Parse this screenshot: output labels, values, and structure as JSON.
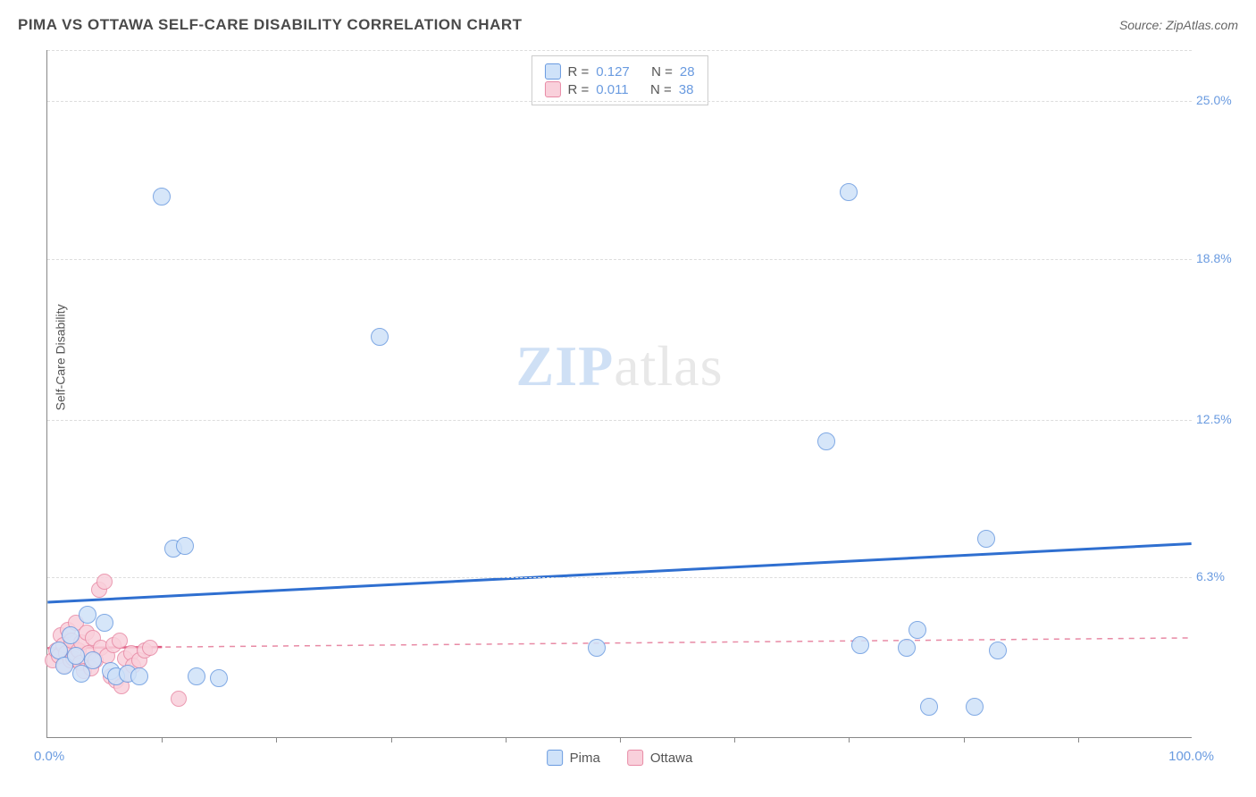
{
  "title": "PIMA VS OTTAWA SELF-CARE DISABILITY CORRELATION CHART",
  "source": "Source: ZipAtlas.com",
  "ylabel": "Self-Care Disability",
  "type": "scatter",
  "xlim": [
    0,
    100
  ],
  "ylim": [
    0,
    27
  ],
  "x_tick_positions": [
    10,
    20,
    30,
    40,
    50,
    60,
    70,
    80,
    90
  ],
  "y_gridlines": [
    6.3,
    12.5,
    18.8,
    25.0
  ],
  "y_tick_labels": [
    "6.3%",
    "12.5%",
    "18.8%",
    "25.0%"
  ],
  "x_min_label": "0.0%",
  "x_max_label": "100.0%",
  "background_color": "#ffffff",
  "grid_color": "#dddddd",
  "axis_color": "#888888",
  "tick_label_color": "#6a9be0",
  "label_fontsize": 14,
  "title_fontsize": 17,
  "series": {
    "pima": {
      "label": "Pima",
      "fill": "#cfe2f9",
      "stroke": "#6a9be0",
      "marker_radius": 10,
      "r_value": "0.127",
      "n_value": "28",
      "trend": {
        "y_at_x0": 5.3,
        "y_at_x100": 7.6,
        "stroke": "#2f6fd0",
        "width": 3,
        "dash": "none"
      },
      "points": [
        {
          "x": 1,
          "y": 3.4
        },
        {
          "x": 1.5,
          "y": 2.8
        },
        {
          "x": 2,
          "y": 4.0
        },
        {
          "x": 2.5,
          "y": 3.2
        },
        {
          "x": 3,
          "y": 2.5
        },
        {
          "x": 3.5,
          "y": 4.8
        },
        {
          "x": 4,
          "y": 3.0
        },
        {
          "x": 5,
          "y": 4.5
        },
        {
          "x": 5.5,
          "y": 2.6
        },
        {
          "x": 6,
          "y": 2.4
        },
        {
          "x": 7,
          "y": 2.5
        },
        {
          "x": 8,
          "y": 2.4
        },
        {
          "x": 10,
          "y": 21.2
        },
        {
          "x": 11,
          "y": 7.4
        },
        {
          "x": 12,
          "y": 7.5
        },
        {
          "x": 13,
          "y": 2.4
        },
        {
          "x": 15,
          "y": 2.3
        },
        {
          "x": 29,
          "y": 15.7
        },
        {
          "x": 48,
          "y": 3.5
        },
        {
          "x": 68,
          "y": 11.6
        },
        {
          "x": 70,
          "y": 21.4
        },
        {
          "x": 71,
          "y": 3.6
        },
        {
          "x": 75,
          "y": 3.5
        },
        {
          "x": 76,
          "y": 4.2
        },
        {
          "x": 77,
          "y": 1.2
        },
        {
          "x": 81,
          "y": 1.2
        },
        {
          "x": 82,
          "y": 7.8
        },
        {
          "x": 83,
          "y": 3.4
        }
      ]
    },
    "ottawa": {
      "label": "Ottawa",
      "fill": "#f9d0db",
      "stroke": "#e88aa5",
      "marker_radius": 9,
      "r_value": "0.011",
      "n_value": "38",
      "trend": {
        "y_at_x0": 3.5,
        "y_at_x100": 3.9,
        "stroke": "#e88aa5",
        "width": 1.5,
        "dash": "6,6"
      },
      "points": [
        {
          "x": 0.5,
          "y": 3.0
        },
        {
          "x": 0.8,
          "y": 3.4
        },
        {
          "x": 1.0,
          "y": 3.2
        },
        {
          "x": 1.2,
          "y": 4.0
        },
        {
          "x": 1.4,
          "y": 3.6
        },
        {
          "x": 1.5,
          "y": 2.8
        },
        {
          "x": 1.6,
          "y": 3.3
        },
        {
          "x": 1.8,
          "y": 4.2
        },
        {
          "x": 2.0,
          "y": 3.0
        },
        {
          "x": 2.1,
          "y": 3.8
        },
        {
          "x": 2.3,
          "y": 3.1
        },
        {
          "x": 2.5,
          "y": 4.5
        },
        {
          "x": 2.7,
          "y": 3.4
        },
        {
          "x": 2.9,
          "y": 2.9
        },
        {
          "x": 3.0,
          "y": 3.7
        },
        {
          "x": 3.2,
          "y": 2.6
        },
        {
          "x": 3.4,
          "y": 4.1
        },
        {
          "x": 3.6,
          "y": 3.3
        },
        {
          "x": 3.8,
          "y": 2.7
        },
        {
          "x": 4.0,
          "y": 3.9
        },
        {
          "x": 4.2,
          "y": 3.0
        },
        {
          "x": 4.5,
          "y": 5.8
        },
        {
          "x": 4.7,
          "y": 3.5
        },
        {
          "x": 5.0,
          "y": 6.1
        },
        {
          "x": 5.2,
          "y": 3.2
        },
        {
          "x": 5.5,
          "y": 2.4
        },
        {
          "x": 5.8,
          "y": 3.6
        },
        {
          "x": 6.0,
          "y": 2.2
        },
        {
          "x": 6.3,
          "y": 3.8
        },
        {
          "x": 6.5,
          "y": 2.0
        },
        {
          "x": 6.8,
          "y": 3.1
        },
        {
          "x": 7.0,
          "y": 2.5
        },
        {
          "x": 7.3,
          "y": 3.3
        },
        {
          "x": 7.5,
          "y": 2.8
        },
        {
          "x": 8.0,
          "y": 3.0
        },
        {
          "x": 8.5,
          "y": 3.4
        },
        {
          "x": 9.0,
          "y": 3.5
        },
        {
          "x": 11.5,
          "y": 1.5
        }
      ]
    }
  },
  "legend_key": {
    "r_label": "R =",
    "n_label": "N ="
  },
  "watermark": {
    "part1": "ZIP",
    "part2": "atlas"
  }
}
